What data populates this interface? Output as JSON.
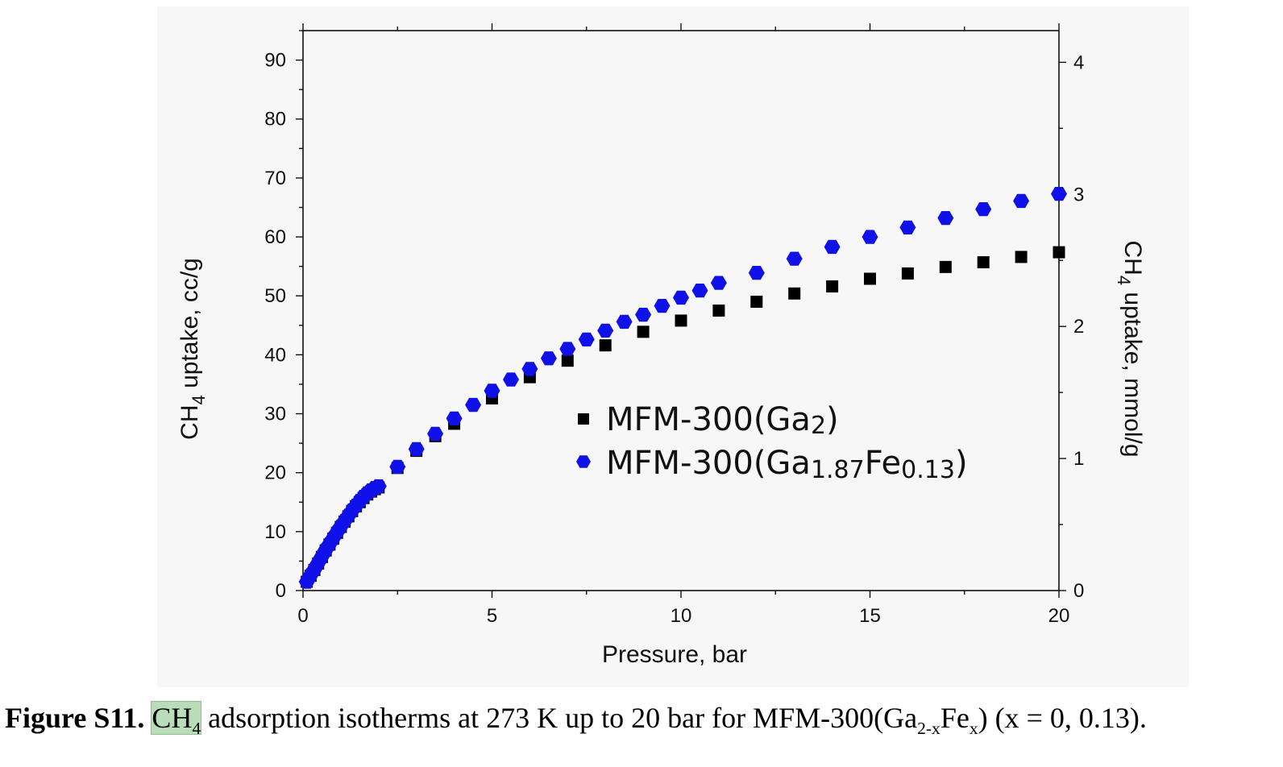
{
  "chart_data": {
    "type": "scatter",
    "xlabel": "Pressure, bar",
    "ylabel_left": "CH4 uptake, cc/g",
    "ylabel_right": "CH4 uptake, mmol/g",
    "xlim": [
      0,
      20
    ],
    "ylim_left": [
      0,
      95
    ],
    "ylim_right": [
      0,
      4.24
    ],
    "x_ticks": [
      0,
      5,
      10,
      15,
      20
    ],
    "y_ticks_left": [
      0,
      10,
      20,
      30,
      40,
      50,
      60,
      70,
      80,
      90
    ],
    "y_ticks_right": [
      0,
      1,
      2,
      3,
      4
    ],
    "grid": false,
    "legend": "center",
    "series": [
      {
        "name": "MFM-300(Ga2)",
        "marker": "square",
        "color": "#000000",
        "x": [
          0.1,
          0.2,
          0.3,
          0.4,
          0.5,
          0.6,
          0.7,
          0.8,
          0.9,
          1.0,
          1.1,
          1.2,
          1.3,
          1.4,
          1.5,
          1.6,
          1.7,
          1.8,
          1.9,
          2.0,
          2.5,
          3,
          3.5,
          4,
          5,
          6,
          7,
          8,
          9,
          10,
          11,
          12,
          13,
          14,
          15,
          16,
          17,
          18,
          19,
          20
        ],
        "y": [
          1.5,
          2.5,
          3.5,
          4.6,
          5.7,
          6.8,
          7.8,
          8.8,
          9.8,
          10.8,
          11.7,
          12.6,
          13.5,
          14.3,
          15.0,
          15.7,
          16.3,
          16.8,
          17.2,
          17.5,
          20.8,
          23.7,
          26.2,
          28.3,
          32.6,
          36.2,
          39.0,
          41.6,
          43.9,
          45.8,
          47.5,
          49.0,
          50.4,
          51.6,
          52.9,
          53.8,
          54.9,
          55.7,
          56.6,
          57.4
        ]
      },
      {
        "name": "MFM-300(Ga1.87Fe0.13)",
        "marker": "hexagon",
        "color": "#1010e8",
        "x": [
          0.1,
          0.2,
          0.3,
          0.4,
          0.5,
          0.6,
          0.7,
          0.8,
          0.9,
          1.0,
          1.1,
          1.2,
          1.3,
          1.4,
          1.5,
          1.6,
          1.7,
          1.8,
          1.9,
          2.0,
          2.5,
          3,
          3.5,
          4,
          4.5,
          5,
          5.5,
          6,
          6.5,
          7,
          7.5,
          8,
          8.5,
          9,
          9.5,
          10,
          10.5,
          11,
          12,
          13,
          14,
          15,
          16,
          17,
          18,
          19,
          20
        ],
        "y": [
          1.5,
          2.6,
          3.6,
          4.7,
          5.8,
          6.9,
          7.9,
          8.9,
          9.9,
          10.9,
          11.8,
          12.7,
          13.6,
          14.4,
          15.2,
          15.9,
          16.5,
          17.0,
          17.4,
          17.7,
          21.0,
          24.0,
          26.6,
          29.2,
          31.5,
          33.9,
          35.8,
          37.6,
          39.4,
          41.0,
          42.6,
          44.1,
          45.6,
          46.8,
          48.3,
          49.7,
          50.9,
          52.2,
          53.9,
          56.3,
          58.3,
          60.0,
          61.6,
          63.2,
          64.7,
          66.1,
          67.3
        ]
      }
    ]
  },
  "legend": {
    "entry1": {
      "base": "MFM-300(Ga",
      "sub": "2",
      "tail": ")"
    },
    "entry2": {
      "base": "MFM-300(Ga",
      "sub1": "1.87",
      "mid": "Fe",
      "sub2": "0.13",
      "tail": ")"
    }
  },
  "axis_titles": {
    "left_pre": "CH",
    "left_sub": "4",
    "left_post": " uptake, cc/g",
    "right_pre": "CH",
    "right_sub": "4",
    "right_post": " uptake, mmol/g",
    "bottom": "Pressure, bar"
  },
  "caption": {
    "label": "Figure S11.",
    "text1": "CH",
    "text1_sub": "4",
    "text2": " adsorption isotherms at 273 K up to 20 bar for MFM-300(Ga",
    "text2_sub": "2-x",
    "text3": "Fe",
    "text3_sub": "x",
    "text4": ") (x = 0, 0.13)."
  },
  "colors": {
    "series1": "#000000",
    "series2": "#1010e8",
    "caption_highlight": "#b9dcb9"
  }
}
